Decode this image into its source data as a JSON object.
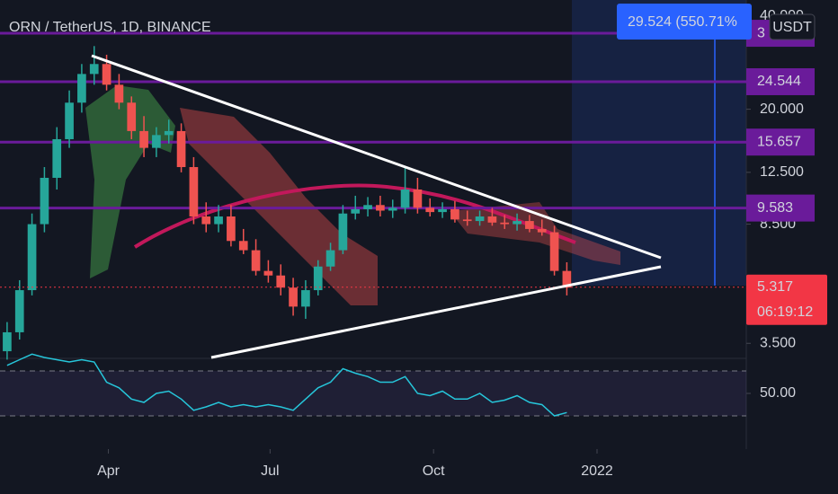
{
  "chart_data": [
    {
      "type": "candlestick",
      "title": "ORN / TetherUS, 1D, BINANCE",
      "log_scale": true,
      "x": [
        33,
        40,
        47,
        54,
        61,
        68,
        75,
        82,
        89,
        96,
        103,
        110,
        117,
        124,
        131,
        138,
        145,
        152,
        159,
        166,
        173,
        180,
        187,
        194,
        201,
        208,
        215,
        222,
        229,
        236,
        243,
        250,
        257,
        264,
        271,
        278,
        285,
        292,
        299,
        306,
        313,
        320,
        327,
        334,
        341,
        348
      ],
      "open": [
        3.3,
        3.8,
        5.2,
        8.5,
        12,
        16,
        21,
        26,
        28,
        24,
        21,
        17,
        15,
        16.5,
        17,
        13,
        9,
        8.5,
        9,
        7.5,
        7,
        6,
        5.8,
        5.3,
        4.6,
        5.2,
        6.2,
        7,
        9.2,
        9.5,
        9.8,
        9.4,
        9.6,
        11,
        9.6,
        9.3,
        9.5,
        8.8,
        8.7,
        9,
        8.6,
        8.5,
        8.7,
        8.2,
        8,
        6
      ],
      "high": [
        4.1,
        5.6,
        9.2,
        13,
        17.5,
        23,
        28,
        32,
        30,
        26,
        22,
        19,
        17.5,
        18.5,
        18,
        14,
        10,
        9.8,
        9.8,
        8.2,
        7.6,
        6.5,
        6.3,
        5.7,
        5.6,
        6.5,
        7.4,
        9.8,
        10.5,
        10.4,
        10.5,
        10.2,
        13,
        12,
        10.3,
        10,
        10.1,
        9.4,
        9.4,
        9.6,
        9.1,
        9.2,
        9.1,
        8.8,
        8.4,
        6.4
      ],
      "low": [
        3.1,
        3.6,
        5,
        8,
        11,
        15,
        19.5,
        24,
        23,
        20,
        16,
        14,
        14,
        15.5,
        12.5,
        8.5,
        8,
        8,
        7.2,
        6.8,
        5.8,
        5.5,
        5,
        4.3,
        4.2,
        5,
        6,
        6.8,
        8.8,
        9,
        9,
        8.9,
        9.2,
        9.2,
        9,
        8.9,
        8.6,
        8.4,
        8.4,
        8.4,
        8.2,
        8.1,
        8,
        7.8,
        5.8,
        5
      ],
      "close": [
        3.8,
        5.2,
        8.5,
        12,
        16,
        21,
        26,
        28,
        24,
        21,
        17,
        15,
        16.5,
        17,
        13,
        9,
        8.5,
        9,
        7.5,
        7,
        6,
        5.8,
        5.3,
        4.6,
        5.2,
        6.2,
        7,
        9.2,
        9.5,
        9.8,
        9.4,
        9.6,
        11,
        9.6,
        9.3,
        9.5,
        8.8,
        8.7,
        9,
        8.6,
        8.5,
        8.7,
        8.2,
        8,
        6,
        5.3
      ],
      "up_color": "#26a69a",
      "down_color": "#ef5350",
      "xlim": [
        29,
        449
      ],
      "xticks": [
        {
          "value": 90,
          "label": "Apr"
        },
        {
          "value": 181,
          "label": "Jul"
        },
        {
          "value": 273,
          "label": "Oct"
        },
        {
          "value": 365,
          "label": "2022"
        }
      ],
      "ylim": [
        3.15,
        45.1
      ],
      "yticks": [
        {
          "value": 40,
          "label": "40.000"
        },
        {
          "value": 20,
          "label": "20.000"
        },
        {
          "value": 12.5,
          "label": "12.500"
        },
        {
          "value": 8.5,
          "label": "8.500"
        },
        {
          "value": 3.5,
          "label": "3.500"
        }
      ],
      "levels": [
        {
          "value": 35.2,
          "label": "3"
        },
        24.544,
        15.657,
        9.583
      ],
      "level_color": "#6a1b9a",
      "last_price": 5.317,
      "countdown": "06:19:12",
      "measure_label": "29.524 (550.71%",
      "currency": "USDT"
    },
    {
      "type": "line",
      "color": "#26c6da",
      "x": [
        33,
        40,
        47,
        54,
        61,
        68,
        75,
        82,
        89,
        96,
        103,
        110,
        117,
        124,
        131,
        138,
        145,
        152,
        159,
        166,
        173,
        180,
        187,
        194,
        201,
        208,
        215,
        222,
        229,
        236,
        243,
        250,
        257,
        264,
        271,
        278,
        285,
        292,
        299,
        306,
        313,
        320,
        327,
        334,
        341,
        348
      ],
      "values": [
        75,
        80,
        85,
        82,
        80,
        78,
        80,
        78,
        60,
        55,
        45,
        42,
        50,
        52,
        45,
        35,
        38,
        42,
        38,
        40,
        38,
        40,
        38,
        35,
        45,
        55,
        60,
        72,
        68,
        65,
        60,
        60,
        65,
        50,
        48,
        52,
        45,
        45,
        50,
        42,
        44,
        48,
        42,
        40,
        30,
        33
      ],
      "ylim": [
        18,
        82
      ],
      "yticks": [
        {
          "value": 50,
          "label": "50.00"
        }
      ],
      "bands": [
        30,
        70
      ]
    }
  ]
}
